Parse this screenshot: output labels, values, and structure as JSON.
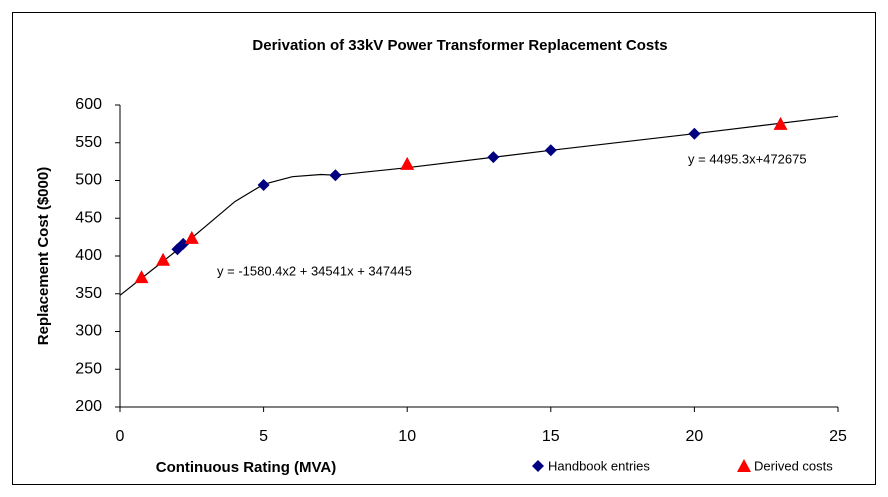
{
  "chart_data": {
    "type": "scatter",
    "title": "Derivation of 33kV Power Transformer Replacement Costs",
    "x_label": "Continuous Rating (MVA)",
    "y_label": "Replacement Cost ($000)",
    "xlim": [
      0,
      25
    ],
    "xticks": [
      0,
      5,
      10,
      15,
      20,
      25
    ],
    "ylim": [
      200,
      600
    ],
    "yticks": [
      200,
      250,
      300,
      350,
      400,
      450,
      500,
      550,
      600
    ],
    "grid": false,
    "legend": "bottom",
    "series": [
      {
        "name": "Handbook entries",
        "color": "#000080",
        "marker": "diamond",
        "x": [
          2,
          2.2,
          5,
          7.5,
          13,
          15,
          20
        ],
        "values": [
          409,
          416,
          494,
          507,
          531,
          540,
          562
        ]
      },
      {
        "name": "Derived costs",
        "color": "#ff0000",
        "marker": "triangle",
        "x": [
          0.75,
          1.5,
          2.5,
          10,
          23
        ],
        "values": [
          372,
          395,
          424,
          522,
          575
        ]
      }
    ],
    "fit_line": {
      "color": "#000000",
      "x": [
        0,
        1,
        2,
        3,
        4,
        5,
        6,
        7,
        7.5,
        10,
        15,
        20,
        25
      ],
      "values": [
        348,
        378,
        408,
        440,
        472,
        495,
        505,
        508,
        507,
        517,
        540,
        562,
        585
      ]
    },
    "annotations": [
      "y = 4495.3x+472675",
      "y = -1580.4x2 + 34541x + 347445"
    ]
  }
}
